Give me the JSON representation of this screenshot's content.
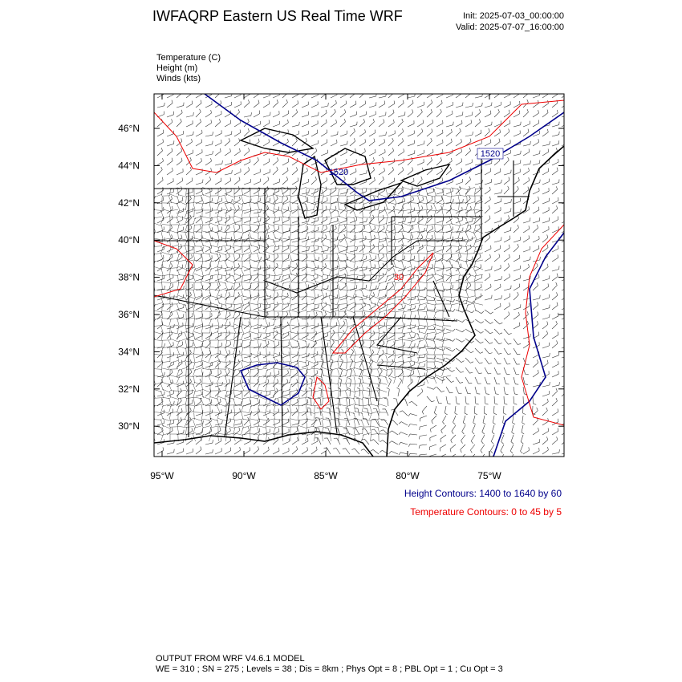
{
  "header": {
    "title": "IWFAQRP Eastern US Real Time WRF",
    "init": "Init: 2025-07-03_00:00:00",
    "valid": "Valid: 2025-07-07_16:00:00"
  },
  "fields": [
    "Temperature   (C)",
    "Height   (m)",
    "Winds   (kts)"
  ],
  "map": {
    "lat_labels": [
      "46°N",
      "44°N",
      "42°N",
      "40°N",
      "38°N",
      "36°N",
      "34°N",
      "32°N",
      "30°N"
    ],
    "lon_labels": [
      "95°W",
      "90°W",
      "85°W",
      "80°W",
      "75°W"
    ],
    "contour_labels": [
      "1520",
      "1520",
      "30"
    ]
  },
  "contour_info": [
    "Height Contours: 1400 to 1640 by 60",
    "Temperature Contours: 0 to 45 by 5"
  ],
  "footer": [
    "OUTPUT FROM WRF V4.6.1 MODEL",
    "WE = 310 ; SN = 275 ; Levels = 38 ; Dis = 8km ; Phys Opt = 8 ; PBL Opt = 1 ; Cu Opt = 3"
  ]
}
